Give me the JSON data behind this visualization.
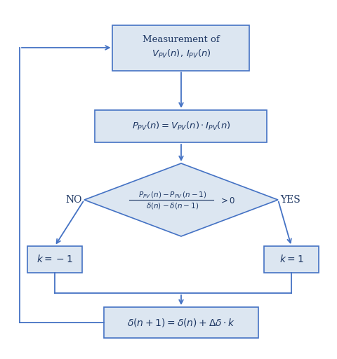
{
  "bg_color": "#ffffff",
  "box_fill": "#dce6f1",
  "box_edge": "#4472c4",
  "arrow_color": "#4472c4",
  "text_color": "#1f3864",
  "box1_text_line1": "Measurement of",
  "box1_text_line2": "$V_{PV}(n),\\, I_{PV}(n)$",
  "box2_text": "$P_{PV}(n) = V_{PV}(n) \\cdot I_{PV}(n)$",
  "diamond_num": "$P_{PV}\\,(n)-P_{PV}\\,(n-1)$",
  "diamond_den": "$\\delta(n)-\\delta(n-1)$",
  "diamond_rhs": "$>0$",
  "box_left_text": "$k=-1$",
  "box_right_text": "$k=1$",
  "box_bottom_text": "$\\delta(n+1) = \\delta(n) + \\Delta\\delta \\cdot k$",
  "no_label": "NO",
  "yes_label": "YES"
}
